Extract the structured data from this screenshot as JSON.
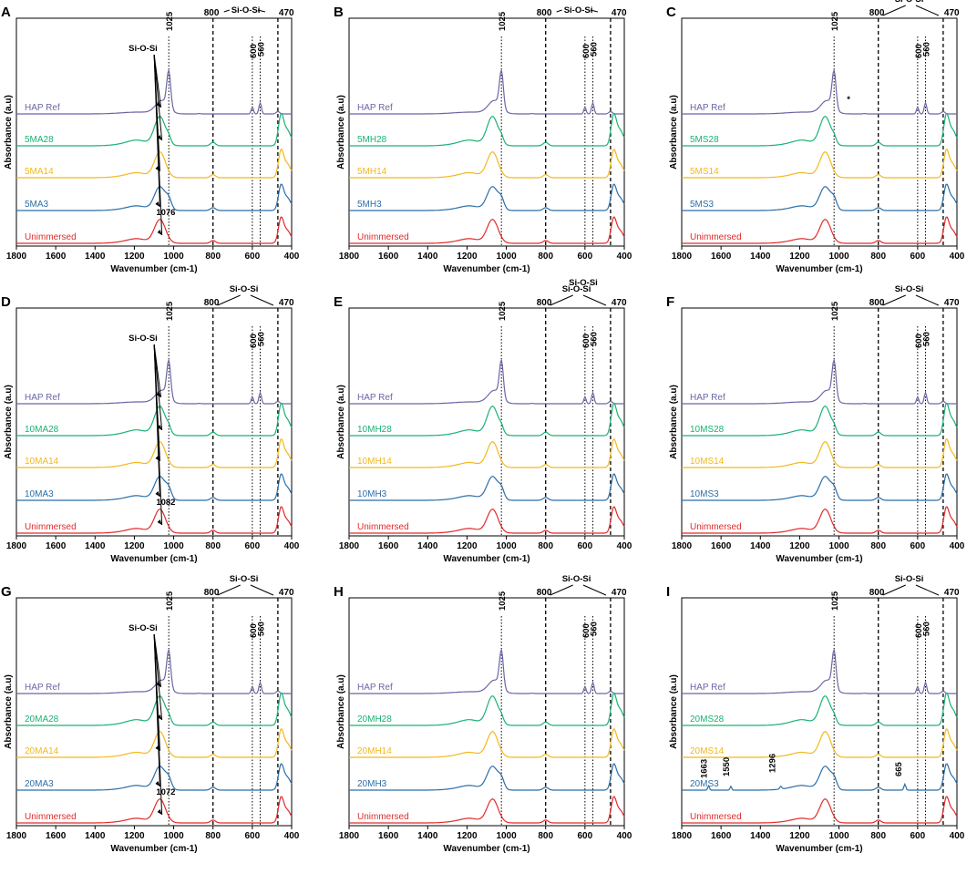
{
  "figure": {
    "stray_label": "Si-O-Si",
    "colors": {
      "HAP Ref": "#6a66a6",
      "28": "#19b273",
      "14": "#f2b81c",
      "3": "#2b6ea8",
      "Unimmersed": "#e22a2a"
    }
  },
  "chart_data": [
    {
      "panel": "A",
      "type": "line",
      "xlabel": "Wavenumber (cm-1)",
      "ylabel": "Absorbance (a.u)",
      "xlim": [
        1800,
        400
      ],
      "xticks": [
        "1800",
        "1600",
        "1400",
        "1200",
        "1000",
        "800",
        "600",
        "400"
      ],
      "series": [
        {
          "name": "HAP Ref",
          "color": "#6a66a6"
        },
        {
          "name": "5MA28",
          "color": "#19b273"
        },
        {
          "name": "5MA14",
          "color": "#f2b81c"
        },
        {
          "name": "5MA3",
          "color": "#2b6ea8"
        },
        {
          "name": "Unimmersed",
          "color": "#e22a2a"
        }
      ],
      "peak_labels": [
        "1025",
        "600",
        "560"
      ],
      "top_labels": [
        "800",
        "Si-O-Si",
        "470"
      ],
      "sio_label": "Si-O-Si",
      "sio_peak": "1076",
      "extra_labels": []
    },
    {
      "panel": "B",
      "type": "line",
      "xlabel": "Wavenumber (cm-1)",
      "ylabel": "Absorbance (a.u)",
      "xlim": [
        1800,
        400
      ],
      "xticks": [
        "1800",
        "1600",
        "1400",
        "1200",
        "1000",
        "800",
        "600",
        "400"
      ],
      "series": [
        {
          "name": "HAP Ref",
          "color": "#6a66a6"
        },
        {
          "name": "5MH28",
          "color": "#19b273"
        },
        {
          "name": "5MH14",
          "color": "#f2b81c"
        },
        {
          "name": "5MH3",
          "color": "#2b6ea8"
        },
        {
          "name": "Unimmersed",
          "color": "#e22a2a"
        }
      ],
      "peak_labels": [
        "1025",
        "600",
        "560"
      ],
      "top_labels": [
        "800",
        "Si-O-Si",
        "470"
      ],
      "sio_label": "",
      "sio_peak": "",
      "extra_labels": []
    },
    {
      "panel": "C",
      "type": "line",
      "xlabel": "Wavenumber (cm-1)",
      "ylabel": "Absorbance (a.u)",
      "xlim": [
        1800,
        400
      ],
      "xticks": [
        "1800",
        "1600",
        "1400",
        "1200",
        "1000",
        "800",
        "600",
        "400"
      ],
      "series": [
        {
          "name": "HAP Ref",
          "color": "#6a66a6"
        },
        {
          "name": "5MS28",
          "color": "#19b273"
        },
        {
          "name": "5MS14",
          "color": "#f2b81c"
        },
        {
          "name": "5MS3",
          "color": "#2b6ea8"
        },
        {
          "name": "Unimmersed",
          "color": "#e22a2a"
        }
      ],
      "peak_labels": [
        "1025",
        "600",
        "560"
      ],
      "top_labels": [
        "800",
        "Si-O-Si",
        "470"
      ],
      "sio_label": "",
      "sio_peak": "",
      "extra_labels": [
        "*"
      ]
    },
    {
      "panel": "D",
      "type": "line",
      "xlabel": "Wavenumber (cm-1)",
      "ylabel": "Absorbance (a.u)",
      "xlim": [
        1800,
        400
      ],
      "xticks": [
        "1800",
        "1600",
        "1400",
        "1200",
        "1000",
        "800",
        "600",
        "400"
      ],
      "series": [
        {
          "name": "HAP Ref",
          "color": "#6a66a6"
        },
        {
          "name": "10MA28",
          "color": "#19b273"
        },
        {
          "name": "10MA14",
          "color": "#f2b81c"
        },
        {
          "name": "10MA3",
          "color": "#2b6ea8"
        },
        {
          "name": "Unimmersed",
          "color": "#e22a2a"
        }
      ],
      "peak_labels": [
        "1025",
        "600",
        "560"
      ],
      "top_labels": [
        "800",
        "Si-O-Si",
        "470"
      ],
      "sio_label": "Si-O-Si",
      "sio_peak": "1082",
      "extra_labels": []
    },
    {
      "panel": "E",
      "type": "line",
      "xlabel": "Wavenumber (cm-1)",
      "ylabel": "Absorbance (a.u)",
      "xlim": [
        1800,
        400
      ],
      "xticks": [
        "1800",
        "1600",
        "1400",
        "1200",
        "1000",
        "800",
        "600",
        "400"
      ],
      "series": [
        {
          "name": "HAP Ref",
          "color": "#6a66a6"
        },
        {
          "name": "10MH28",
          "color": "#19b273"
        },
        {
          "name": "10MH14",
          "color": "#f2b81c"
        },
        {
          "name": "10MH3",
          "color": "#2b6ea8"
        },
        {
          "name": "Unimmersed",
          "color": "#e22a2a"
        }
      ],
      "peak_labels": [
        "1025",
        "600",
        "560"
      ],
      "top_labels": [
        "800",
        "Si-O-Si",
        "470"
      ],
      "sio_label": "",
      "sio_peak": "",
      "extra_labels": []
    },
    {
      "panel": "F",
      "type": "line",
      "xlabel": "Wavenumber (cm-1)",
      "ylabel": "Absorbance (a.u)",
      "xlim": [
        1800,
        400
      ],
      "xticks": [
        "1800",
        "1600",
        "1400",
        "1200",
        "1000",
        "800",
        "600",
        "400"
      ],
      "series": [
        {
          "name": "HAP Ref",
          "color": "#6a66a6"
        },
        {
          "name": "10MS28",
          "color": "#19b273"
        },
        {
          "name": "10MS14",
          "color": "#f2b81c"
        },
        {
          "name": "10MS3",
          "color": "#2b6ea8"
        },
        {
          "name": "Unimmersed",
          "color": "#e22a2a"
        }
      ],
      "peak_labels": [
        "1025",
        "600",
        "560"
      ],
      "top_labels": [
        "800",
        "Si-O-Si",
        "470"
      ],
      "sio_label": "",
      "sio_peak": "",
      "extra_labels": []
    },
    {
      "panel": "G",
      "type": "line",
      "xlabel": "Wavenumber (cm-1)",
      "ylabel": "Absorbance (a.u)",
      "xlim": [
        1800,
        400
      ],
      "xticks": [
        "1800",
        "1600",
        "1400",
        "1200",
        "1000",
        "800",
        "600",
        "400"
      ],
      "series": [
        {
          "name": "HAP Ref",
          "color": "#6a66a6"
        },
        {
          "name": "20MA28",
          "color": "#19b273"
        },
        {
          "name": "20MA14",
          "color": "#f2b81c"
        },
        {
          "name": "20MA3",
          "color": "#2b6ea8"
        },
        {
          "name": "Unimmersed",
          "color": "#e22a2a"
        }
      ],
      "peak_labels": [
        "1025",
        "600",
        "560"
      ],
      "top_labels": [
        "800",
        "Si-O-Si",
        "470"
      ],
      "sio_label": "Si-O-Si",
      "sio_peak": "1072",
      "extra_labels": []
    },
    {
      "panel": "H",
      "type": "line",
      "xlabel": "Wavenumber (cm-1)",
      "ylabel": "Absorbance (a.u)",
      "xlim": [
        1800,
        400
      ],
      "xticks": [
        "1800",
        "1600",
        "1400",
        "1200",
        "1000",
        "800",
        "600",
        "400"
      ],
      "series": [
        {
          "name": "HAP Ref",
          "color": "#6a66a6"
        },
        {
          "name": "20MH28",
          "color": "#19b273"
        },
        {
          "name": "20MH14",
          "color": "#f2b81c"
        },
        {
          "name": "20MH3",
          "color": "#2b6ea8"
        },
        {
          "name": "Unimmersed",
          "color": "#e22a2a"
        }
      ],
      "peak_labels": [
        "1025",
        "600",
        "560"
      ],
      "top_labels": [
        "800",
        "Si-O-Si",
        "470"
      ],
      "sio_label": "",
      "sio_peak": "",
      "extra_labels": []
    },
    {
      "panel": "I",
      "type": "line",
      "xlabel": "Wavenumber (cm-1)",
      "ylabel": "Absorbance (a.u)",
      "xlim": [
        1800,
        400
      ],
      "xticks": [
        "1800",
        "1600",
        "1400",
        "1200",
        "1000",
        "800",
        "600",
        "400"
      ],
      "series": [
        {
          "name": "HAP Ref",
          "color": "#6a66a6"
        },
        {
          "name": "20MS28",
          "color": "#19b273"
        },
        {
          "name": "20MS14",
          "color": "#f2b81c"
        },
        {
          "name": "20MS3",
          "color": "#2b6ea8"
        },
        {
          "name": "Unimmersed",
          "color": "#e22a2a"
        }
      ],
      "peak_labels": [
        "1025",
        "600",
        "560"
      ],
      "top_labels": [
        "800",
        "Si-O-Si",
        "470"
      ],
      "sio_label": "",
      "sio_peak": "",
      "extra_labels": [
        "1663",
        "1550",
        "1296",
        "665"
      ]
    }
  ]
}
